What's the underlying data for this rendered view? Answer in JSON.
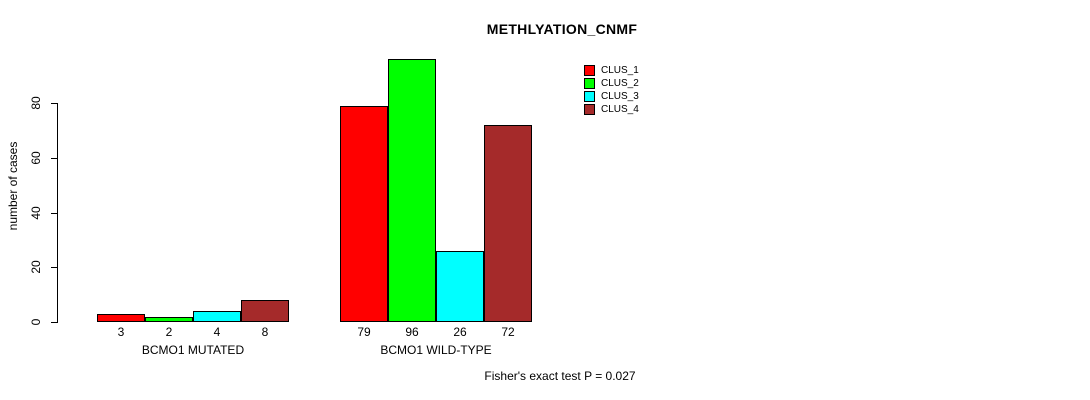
{
  "chart_data": {
    "type": "bar",
    "title": "METHLYATION_CNMF",
    "ylabel": "number of cases",
    "xlabel": "",
    "ylim": [
      0,
      80
    ],
    "yticks": [
      0,
      20,
      40,
      60,
      80
    ],
    "grid": false,
    "legend_position": "top-right",
    "bar_border_color": "#000000",
    "categories": [
      "BCMO1 MUTATED",
      "BCMO1 WILD-TYPE"
    ],
    "series": [
      {
        "name": "CLUS_1",
        "color": "#FF0000",
        "values": [
          3,
          79
        ]
      },
      {
        "name": "CLUS_2",
        "color": "#00FF00",
        "values": [
          2,
          96
        ]
      },
      {
        "name": "CLUS_3",
        "color": "#00FFFF",
        "values": [
          4,
          26
        ]
      },
      {
        "name": "CLUS_4",
        "color": "#A52A2A",
        "values": [
          8,
          72
        ]
      }
    ],
    "bar_value_labels": {
      "BCMO1 MUTATED": [
        3,
        2,
        4,
        8
      ],
      "BCMO1 WILD-TYPE": [
        79,
        96,
        26,
        72
      ]
    },
    "annotation": "Fisher's exact test P = 0.027"
  }
}
